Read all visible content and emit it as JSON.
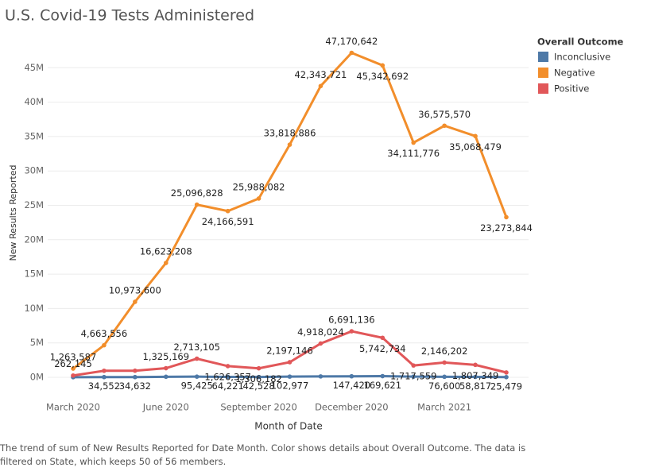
{
  "chart_data": {
    "type": "line",
    "title": "U.S. Covid-19 Tests Administered",
    "x_label": "Month of Date",
    "y_label": "New Results Reported",
    "legend_title": "Overall Outcome",
    "caption": "The trend of sum of New Results Reported for Date Month.  Color shows details about Overall Outcome. The data is filtered on State, which keeps 50 of 56 members.",
    "categories": [
      "March 2020",
      null,
      null,
      "June 2020",
      null,
      null,
      "September 2020",
      null,
      null,
      "December 2020",
      null,
      null,
      "March 2021",
      null,
      null
    ],
    "ylim": [
      -1500000,
      50000000
    ],
    "yticks": [
      {
        "value": 0,
        "label": "0M"
      },
      {
        "value": 5000000,
        "label": "5M"
      },
      {
        "value": 10000000,
        "label": "10M"
      },
      {
        "value": 15000000,
        "label": "15M"
      },
      {
        "value": 20000000,
        "label": "20M"
      },
      {
        "value": 25000000,
        "label": "25M"
      },
      {
        "value": 30000000,
        "label": "30M"
      },
      {
        "value": 35000000,
        "label": "35M"
      },
      {
        "value": 40000000,
        "label": "40M"
      },
      {
        "value": 45000000,
        "label": "45M"
      }
    ],
    "grid": true,
    "legend": "right",
    "series": [
      {
        "name": "Inconclusive",
        "color": "#4e79a7",
        "values": [
          20000,
          34552,
          34632,
          80000,
          95425,
          64221,
          42528,
          102977,
          130000,
          147420,
          169621,
          100000,
          76600,
          58817,
          25479
        ],
        "value_labels": [
          null,
          "34,552",
          "34,632",
          null,
          "95,425",
          "64,221",
          "42,528",
          "102,977",
          null,
          "147,420",
          "169,621",
          null,
          "76,600",
          "58,817",
          "25,479"
        ]
      },
      {
        "name": "Negative",
        "color": "#f28e2b",
        "values": [
          1263587,
          4663556,
          10973600,
          16623208,
          25096828,
          24166591,
          25988082,
          33818886,
          42343721,
          47170642,
          45342692,
          34111776,
          36575570,
          35068479,
          23273844
        ],
        "value_labels": [
          "1,263,587",
          "4,663,556",
          "10,973,600",
          "16,623,208",
          "25,096,828",
          "24,166,591",
          "25,988,082",
          "33,818,886",
          "42,343,721",
          "47,170,642",
          "45,342,692",
          "34,111,776",
          "36,575,570",
          "35,068,479",
          "23,273,844"
        ]
      },
      {
        "name": "Positive",
        "color": "#e15759",
        "values": [
          262145,
          950000,
          960000,
          1325169,
          2713105,
          1626357,
          1306182,
          2197146,
          4918024,
          6691136,
          5742734,
          1717559,
          2146202,
          1807349,
          700000
        ],
        "value_labels": [
          "262,145",
          null,
          null,
          "1,325,169",
          "2,713,105",
          "1,626,357",
          "1,306,182",
          "2,197,146",
          "4,918,024",
          "6,691,136",
          "5,742,734",
          "1,717,559",
          "2,146,202",
          "1,807,349",
          null
        ]
      }
    ]
  }
}
